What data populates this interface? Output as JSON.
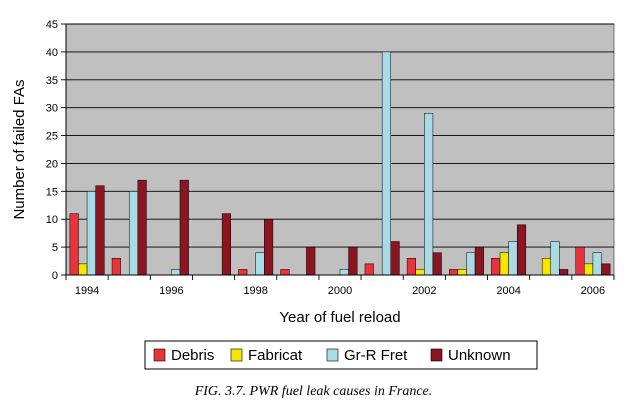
{
  "chart_data": {
    "type": "bar",
    "x_tick_labels": [
      "1994",
      "1996",
      "1998",
      "2000",
      "2002",
      "2004",
      "2006"
    ],
    "categories": [
      "1994",
      "1995",
      "1996",
      "1997",
      "1998",
      "1999",
      "2000",
      "2001",
      "2002",
      "2003",
      "2004",
      "2005",
      "2006"
    ],
    "series": [
      {
        "name": "Debris",
        "color": "#e8323c",
        "values": [
          11,
          3,
          0,
          0,
          1,
          1,
          0,
          2,
          3,
          1,
          3,
          0,
          5
        ]
      },
      {
        "name": "Fabricat",
        "color": "#f5e600",
        "values": [
          2,
          0,
          0,
          0,
          0,
          0,
          0,
          0,
          1,
          1,
          4,
          3,
          2
        ]
      },
      {
        "name": "Gr-R Fret",
        "color": "#a9dbe6",
        "values": [
          15,
          15,
          1,
          0,
          4,
          0,
          1,
          40,
          29,
          4,
          6,
          6,
          4
        ]
      },
      {
        "name": "Unknown",
        "color": "#8b1520",
        "values": [
          16,
          17,
          17,
          11,
          10,
          5,
          5,
          6,
          4,
          5,
          9,
          1,
          2
        ]
      }
    ],
    "xlabel": "Year of fuel reload",
    "ylabel": "Number of failed FAs",
    "ylim": [
      0,
      45
    ],
    "yticks": [
      0,
      5,
      10,
      15,
      20,
      25,
      30,
      35,
      40,
      45
    ],
    "grid": true,
    "legend_position": "bottom",
    "plot_background": "#c0c0c0"
  },
  "caption": "FIG. 3.7.  PWR fuel leak causes in France."
}
